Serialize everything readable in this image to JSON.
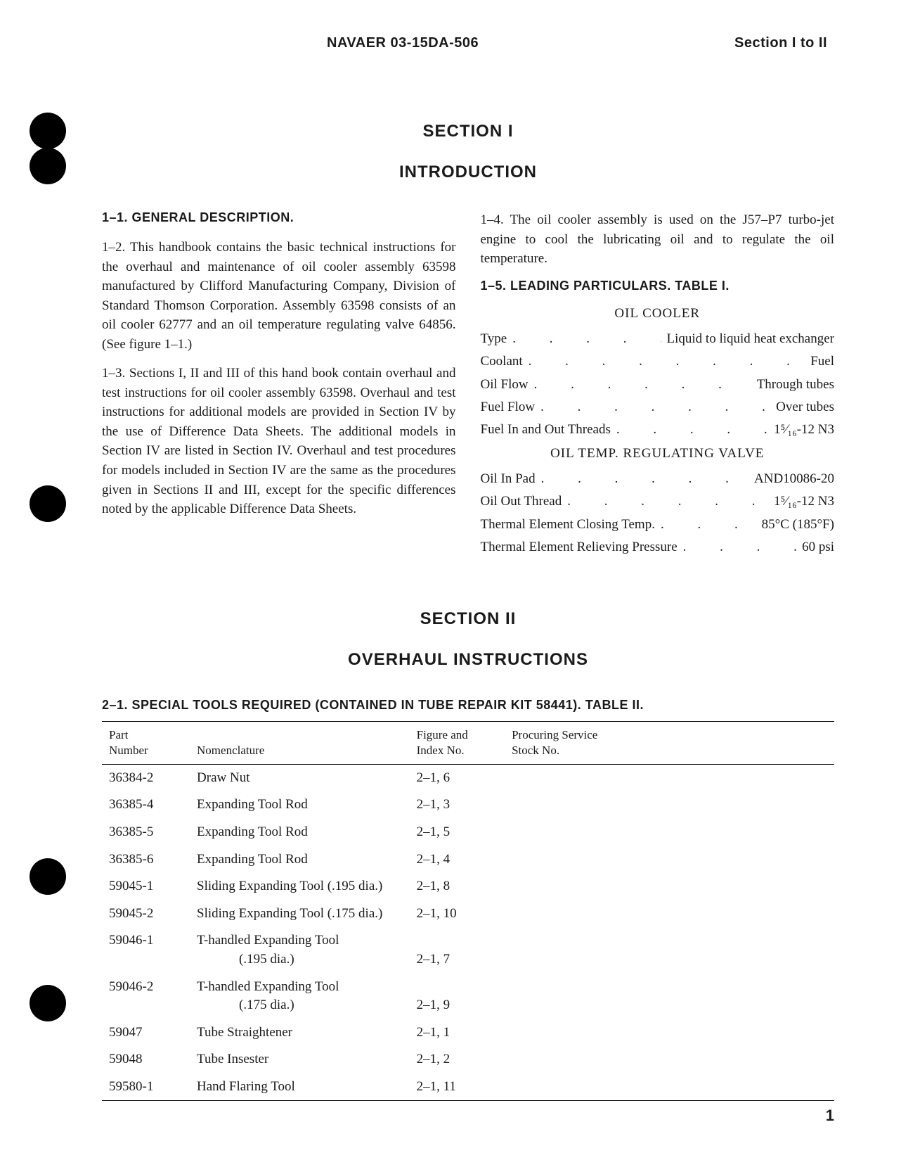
{
  "header": {
    "doc_id": "NAVAER 03-15DA-506",
    "section_ref": "Section I to II"
  },
  "section1": {
    "title": "SECTION I",
    "subtitle": "INTRODUCTION",
    "heading_1_1": "1–1.   GENERAL DESCRIPTION.",
    "para_1_2": "1–2.  This handbook contains the basic technical instructions for the overhaul and maintenance of oil cooler assembly 63598 manufactured by Clifford Manufacturing Company, Division of Standard Thomson Corporation. Assembly 63598 consists of an oil cooler 62777 and an oil temperature regulating valve 64856. (See figure 1–1.)",
    "para_1_3": "1–3.  Sections I, II and III of this hand book contain overhaul and test instructions for oil cooler assembly 63598. Overhaul and test instructions for additional models are provided in Section IV by the use of Difference Data Sheets. The additional models in Section IV are listed in Section IV. Overhaul and test procedures for models included in Section IV are the same as the procedures given in Sections II and III, except for the specific differences noted by the applicable Difference Data Sheets.",
    "para_1_4": "1–4.  The oil cooler assembly is used on the J57–P7 turbo-jet engine to cool the lubricating oil and to regulate the oil temperature.",
    "heading_1_5": "1–5.  LEADING PARTICULARS. TABLE I.",
    "spec_heading_1": "OIL  COOLER",
    "specs_cooler": [
      {
        "label": "Type",
        "value": "Liquid to liquid heat exchanger"
      },
      {
        "label": "Coolant",
        "value": "Fuel"
      },
      {
        "label": "Oil Flow",
        "value": "Through tubes"
      },
      {
        "label": "Fuel Flow",
        "value": "Over tubes"
      },
      {
        "label": "Fuel In and Out Threads",
        "value": "1⁵⁄₁₆-12 N3"
      }
    ],
    "spec_heading_2": "OIL  TEMP.  REGULATING  VALVE",
    "specs_valve": [
      {
        "label": "Oil In Pad",
        "value": "AND10086-20"
      },
      {
        "label": "Oil Out Thread",
        "value": "1⁵⁄₁₆-12 N3"
      },
      {
        "label": "Thermal Element Closing Temp.",
        "value": "85°C (185°F)"
      },
      {
        "label": "Thermal Element Relieving Pressure",
        "value": "60 psi"
      }
    ]
  },
  "section2": {
    "title": "SECTION II",
    "subtitle": "OVERHAUL INSTRUCTIONS",
    "table_heading": "2–1.  SPECIAL TOOLS REQUIRED (CONTAINED IN TUBE REPAIR KIT 58441).   TABLE II.",
    "columns": {
      "part": "Part\nNumber",
      "nom": "Nomenclature",
      "fig": "Figure and\nIndex No.",
      "stock": "Procuring Service\nStock No."
    },
    "rows": [
      {
        "part": "36384-2",
        "nom": "Draw Nut",
        "fig": "2–1, 6",
        "stock": ""
      },
      {
        "part": "36385-4",
        "nom": "Expanding Tool Rod",
        "fig": "2–1, 3",
        "stock": ""
      },
      {
        "part": "36385-5",
        "nom": "Expanding Tool Rod",
        "fig": "2–1, 5",
        "stock": ""
      },
      {
        "part": "36385-6",
        "nom": "Expanding Tool Rod",
        "fig": "2–1, 4",
        "stock": ""
      },
      {
        "part": "59045-1",
        "nom": "Sliding Expanding Tool (.195 dia.)",
        "fig": "2–1, 8",
        "stock": ""
      },
      {
        "part": "59045-2",
        "nom": "Sliding Expanding Tool (.175 dia.)",
        "fig": "2–1, 10",
        "stock": ""
      },
      {
        "part": "59046-1",
        "nom": "T-handled Expanding Tool\n(.195 dia.)",
        "fig": "2–1, 7",
        "stock": ""
      },
      {
        "part": "59046-2",
        "nom": "T-handled Expanding Tool\n(.175 dia.)",
        "fig": "2–1, 9",
        "stock": ""
      },
      {
        "part": "59047",
        "nom": "Tube Straightener",
        "fig": "2–1, 1",
        "stock": ""
      },
      {
        "part": "59048",
        "nom": "Tube Insester",
        "fig": "2–1, 2",
        "stock": ""
      },
      {
        "part": "59580-1",
        "nom": "Hand Flaring Tool",
        "fig": "2–1, 11",
        "stock": ""
      }
    ]
  },
  "page_num": "1",
  "punch_holes": [
    160,
    210,
    690,
    1220,
    1400
  ],
  "colors": {
    "text": "#1a1a1a",
    "background": "#ffffff",
    "border": "#000000"
  }
}
